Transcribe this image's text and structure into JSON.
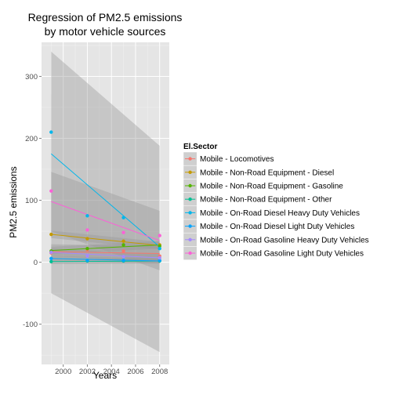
{
  "chart_data": {
    "type": "scatter",
    "title_lines": [
      "Regression of PM2.5 emissions",
      "by motor vehicle sources"
    ],
    "xlabel": "Years",
    "ylabel": "PM2.5 emissions",
    "xlim": [
      1998.2,
      2008.8
    ],
    "ylim": [
      -165,
      355
    ],
    "x_ticks": [
      2000,
      2002,
      2004,
      2006,
      2008
    ],
    "y_ticks": [
      -100,
      0,
      100,
      200,
      300
    ],
    "x_tick_labels": [
      "2000",
      "2002",
      "2004",
      "2006",
      "2008"
    ],
    "y_tick_labels": [
      "-100",
      "0",
      "100",
      "200",
      "300"
    ],
    "grid": true,
    "panel_background": "#e5e5e5",
    "legend_position": "right",
    "legend_title": "El.Sector",
    "series": [
      {
        "name": "Mobile - Locomotives",
        "color": "#F8766D",
        "points": [
          [
            1999,
            15
          ],
          [
            2002,
            20
          ],
          [
            2005,
            18
          ],
          [
            2008,
            10
          ]
        ],
        "fit": [
          17,
          14
        ],
        "band": [
          [
            5,
            29
          ],
          [
            2,
            26
          ]
        ]
      },
      {
        "name": "Mobile - Non-Road Equipment - Diesel",
        "color": "#C49A00",
        "points": [
          [
            1999,
            45
          ],
          [
            2002,
            38
          ],
          [
            2005,
            34
          ],
          [
            2008,
            28
          ]
        ],
        "fit": [
          45,
          27
        ],
        "band": [
          [
            39,
            51
          ],
          [
            21,
            33
          ]
        ]
      },
      {
        "name": "Mobile - Non-Road Equipment - Gasoline",
        "color": "#53B400",
        "points": [
          [
            1999,
            18
          ],
          [
            2002,
            22
          ],
          [
            2005,
            28
          ],
          [
            2008,
            26
          ]
        ],
        "fit": [
          19,
          28
        ],
        "band": [
          [
            13,
            25
          ],
          [
            22,
            34
          ]
        ]
      },
      {
        "name": "Mobile - Non-Road Equipment - Other",
        "color": "#00C094",
        "points": [
          [
            1999,
            1
          ],
          [
            2002,
            2
          ],
          [
            2005,
            2
          ],
          [
            2008,
            2
          ]
        ],
        "fit": [
          1,
          2
        ],
        "band": [
          [
            -3,
            5
          ],
          [
            -2,
            6
          ]
        ]
      },
      {
        "name": "Mobile - On-Road Diesel Heavy Duty Vehicles",
        "color": "#00B6EB",
        "points": [
          [
            1999,
            210
          ],
          [
            2002,
            75
          ],
          [
            2005,
            72
          ],
          [
            2008,
            22
          ]
        ],
        "fit": [
          175,
          25
        ],
        "band": [
          [
            -50,
            340
          ],
          [
            -145,
            188
          ]
        ]
      },
      {
        "name": "Mobile - On-Road Diesel Light Duty Vehicles",
        "color": "#06A4FF",
        "points": [
          [
            1999,
            6
          ],
          [
            2002,
            3
          ],
          [
            2005,
            3
          ],
          [
            2008,
            3
          ]
        ],
        "fit": [
          6,
          2
        ],
        "band": [
          [
            2,
            10
          ],
          [
            -2,
            6
          ]
        ]
      },
      {
        "name": "Mobile - On-Road Gasoline Heavy Duty Vehicles",
        "color": "#A58AFF",
        "points": [
          [
            1999,
            16
          ],
          [
            2002,
            10
          ],
          [
            2005,
            9
          ],
          [
            2008,
            7
          ]
        ],
        "fit": [
          16,
          7
        ],
        "band": [
          [
            10,
            22
          ],
          [
            1,
            13
          ]
        ]
      },
      {
        "name": "Mobile - On-Road Gasoline Light Duty Vehicles",
        "color": "#FB61D7",
        "points": [
          [
            1999,
            115
          ],
          [
            2002,
            52
          ],
          [
            2005,
            48
          ],
          [
            2008,
            43
          ]
        ],
        "fit": [
          98,
          35
        ],
        "band": [
          [
            50,
            146
          ],
          [
            -13,
            83
          ]
        ]
      }
    ]
  }
}
